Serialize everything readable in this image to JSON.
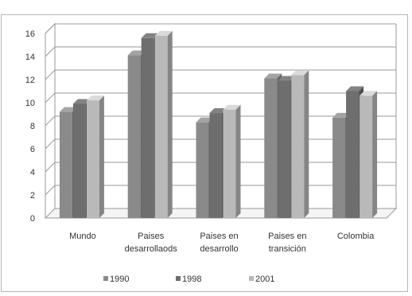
{
  "chart_data": {
    "type": "bar",
    "title": "",
    "xlabel": "",
    "ylabel": "",
    "ylim": [
      0,
      16
    ],
    "yticks": [
      0,
      2,
      4,
      6,
      8,
      10,
      12,
      14,
      16
    ],
    "grid": true,
    "legend_position": "bottom",
    "categories": [
      [
        "Mundo"
      ],
      [
        "Paises",
        "desarrollaods"
      ],
      [
        "Paises en",
        "desarrollo"
      ],
      [
        "Paises en",
        "transición"
      ],
      [
        "Colombia"
      ]
    ],
    "series": [
      {
        "name": "1990",
        "color": "#8a8a8a",
        "values": [
          9.2,
          14.1,
          8.3,
          12.1,
          8.7
        ]
      },
      {
        "name": "1998",
        "color": "#6e6e6e",
        "values": [
          9.9,
          15.6,
          9.1,
          11.9,
          11.0
        ]
      },
      {
        "name": "2001",
        "color": "#b9b9b9",
        "values": [
          10.2,
          15.8,
          9.4,
          12.4,
          10.6
        ]
      }
    ]
  }
}
